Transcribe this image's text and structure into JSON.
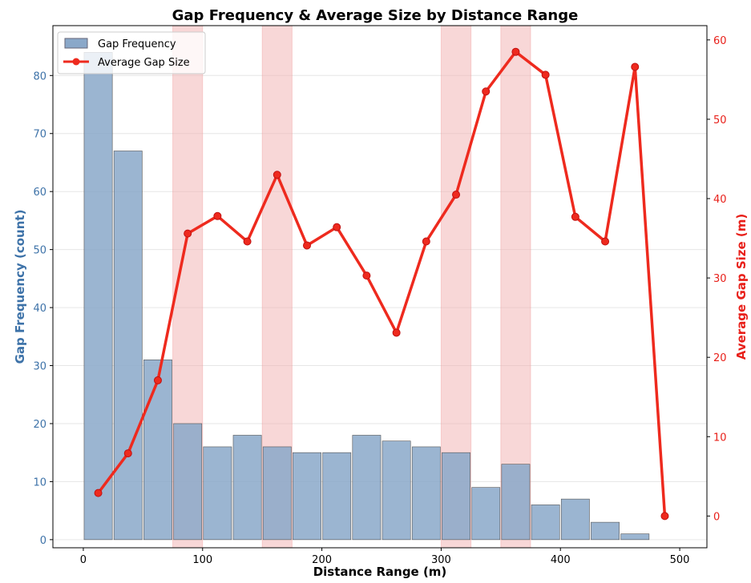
{
  "chart_data": {
    "type": "bar+line",
    "title": "Gap Frequency & Average Size by Distance Range",
    "xlabel": "Distance Range (m)",
    "ylabel_left": "Gap Frequency (count)",
    "ylabel_right": "Average Gap Size (m)",
    "xlim": [
      -25.5,
      522.8
    ],
    "ylim_left": [
      -1.4,
      88.6
    ],
    "ylim_right": [
      -4.0,
      61.8
    ],
    "x_ticks": [
      0,
      100,
      200,
      300,
      400,
      500
    ],
    "y_ticks_left": [
      0,
      10,
      20,
      30,
      40,
      50,
      60,
      70,
      80
    ],
    "y_ticks_right": [
      0,
      10,
      20,
      30,
      40,
      50,
      60
    ],
    "bin_width": 25,
    "bin_starts": [
      0,
      25,
      50,
      75,
      100,
      125,
      150,
      175,
      200,
      225,
      250,
      275,
      300,
      325,
      350,
      375,
      400,
      425,
      450,
      475
    ],
    "series": [
      {
        "name": "Gap Frequency",
        "type": "bar",
        "axis": "left",
        "color": "#8aa8c9",
        "values": [
          84,
          67,
          31,
          20,
          16,
          18,
          16,
          15,
          15,
          18,
          17,
          16,
          15,
          9,
          13,
          6,
          7,
          3,
          1,
          0
        ]
      },
      {
        "name": "Average Gap Size",
        "type": "line",
        "axis": "right",
        "color": "#ee2a1e",
        "x": [
          12.5,
          37.5,
          62.5,
          87.5,
          112.5,
          137.5,
          162.5,
          187.5,
          212.5,
          237.5,
          262.5,
          287.5,
          312.5,
          337.5,
          362.5,
          387.5,
          412.5,
          437.5,
          462.5,
          487.5
        ],
        "values": [
          2.9,
          7.9,
          17.1,
          35.6,
          37.8,
          34.6,
          43.0,
          34.1,
          36.4,
          30.3,
          23.1,
          34.6,
          40.5,
          53.5,
          58.5,
          55.6,
          37.7,
          34.6,
          56.6,
          0.0
        ]
      }
    ],
    "highlight_ranges": [
      [
        75,
        100
      ],
      [
        150,
        175
      ],
      [
        300,
        325
      ],
      [
        350,
        375
      ]
    ],
    "highlight_color": "#f2b0b0",
    "left_axis_color": "#3d72a8",
    "right_axis_color": "#e8201a",
    "grid": "horizontal",
    "legend": {
      "placement": "top-left",
      "entries": [
        "Gap Frequency",
        "Average Gap Size"
      ]
    }
  }
}
